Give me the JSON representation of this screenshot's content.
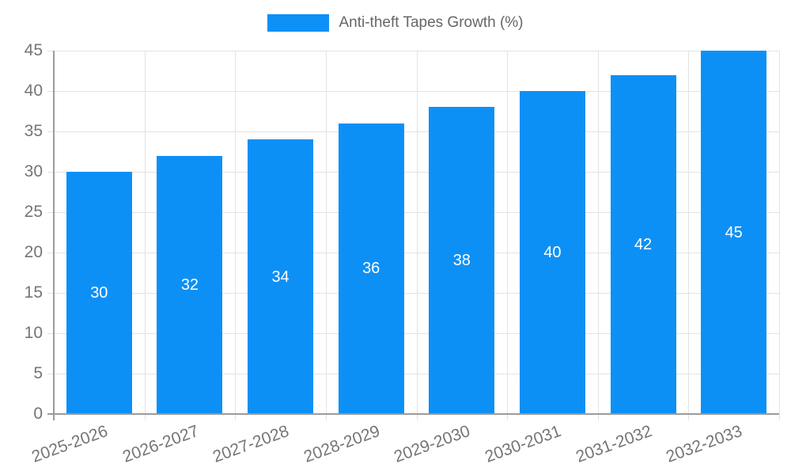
{
  "chart_data": {
    "type": "bar",
    "title": "Anti-theft Tapes Growth (%)",
    "categories": [
      "2025-2026",
      "2026-2027",
      "2027-2028",
      "2028-2029",
      "2029-2030",
      "2030-2031",
      "2031-2032",
      "2032-2033"
    ],
    "values": [
      30,
      32,
      34,
      36,
      38,
      40,
      42,
      45
    ],
    "series_name": "Anti-theft Tapes Growth (%)",
    "xlabel": "",
    "ylabel": "",
    "ylim": [
      0,
      45
    ],
    "ytick_step": 5,
    "ytick_labels": [
      "0",
      "5",
      "10",
      "15",
      "20",
      "25",
      "30",
      "35",
      "40",
      "45"
    ],
    "grid": true,
    "legend_position": "top",
    "x_label_rotation_deg": -20,
    "value_labels_shown": true,
    "colors": {
      "bar": "#0D90F5",
      "value_label": "#FFFFFF",
      "axis_text": "#757575",
      "legend_text": "#666666",
      "gridline": "#E3E3E3",
      "axis_line": "#9B9B9B",
      "background": "#FFFFFF"
    }
  }
}
